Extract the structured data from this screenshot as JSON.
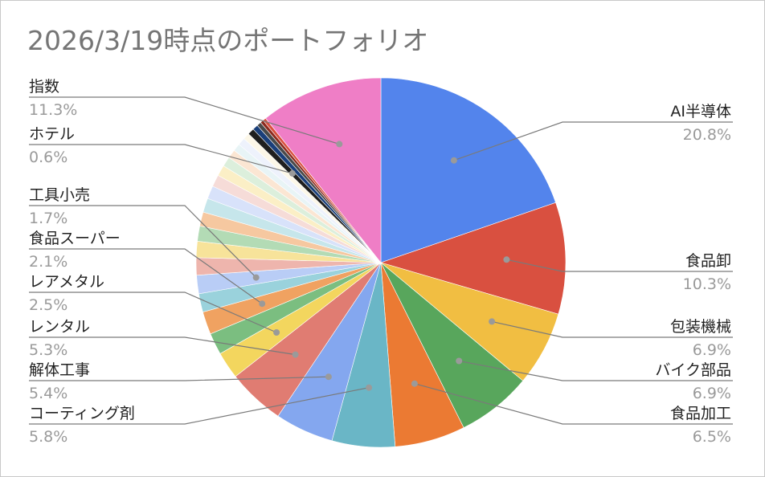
{
  "chart_data": {
    "type": "pie",
    "title": "2026/3/19時点のポートフォリオ",
    "start_angle_deg": 0,
    "direction": "clockwise",
    "slices": [
      {
        "name": "AI半導体",
        "value": 20.8,
        "pct_label": "20.8%",
        "color": "#5384ec",
        "labeled": true
      },
      {
        "name": "食品卸",
        "value": 10.3,
        "pct_label": "10.3%",
        "color": "#d95040",
        "labeled": true
      },
      {
        "name": "包装機械",
        "value": 6.9,
        "pct_label": "6.9%",
        "color": "#f1be42",
        "labeled": true
      },
      {
        "name": "バイク部品",
        "value": 6.9,
        "pct_label": "6.9%",
        "color": "#58a65c",
        "labeled": true
      },
      {
        "name": "食品加工",
        "value": 6.5,
        "pct_label": "6.5%",
        "color": "#eb7a33",
        "labeled": true
      },
      {
        "name": "コーティング剤",
        "value": 5.8,
        "pct_label": "5.8%",
        "color": "#6ab6c6",
        "labeled": true
      },
      {
        "name": "解体工事",
        "value": 5.4,
        "pct_label": "5.4%",
        "color": "#84a7ef",
        "labeled": true
      },
      {
        "name": "レンタル",
        "value": 5.3,
        "pct_label": "5.3%",
        "color": "#e07c72",
        "labeled": true
      },
      {
        "name": "レアメタル",
        "value": 2.5,
        "pct_label": "2.5%",
        "color": "#f3d65e",
        "labeled": true
      },
      {
        "name": "",
        "value": 2.0,
        "pct_label": "",
        "color": "#7bbe80",
        "labeled": false
      },
      {
        "name": "食品スーパー",
        "value": 2.1,
        "pct_label": "2.1%",
        "color": "#f0a261",
        "labeled": true
      },
      {
        "name": "",
        "value": 1.7,
        "pct_label": "",
        "color": "#9ad2dc",
        "labeled": false
      },
      {
        "name": "工具小売",
        "value": 1.7,
        "pct_label": "1.7%",
        "color": "#b9cdf6",
        "labeled": true
      },
      {
        "name": "",
        "value": 1.6,
        "pct_label": "",
        "color": "#eeb5ad",
        "labeled": false
      },
      {
        "name": "",
        "value": 1.5,
        "pct_label": "",
        "color": "#f7e39a",
        "labeled": false
      },
      {
        "name": "",
        "value": 1.4,
        "pct_label": "",
        "color": "#b3dbb5",
        "labeled": false
      },
      {
        "name": "",
        "value": 1.3,
        "pct_label": "",
        "color": "#f6c8a0",
        "labeled": false
      },
      {
        "name": "",
        "value": 1.3,
        "pct_label": "",
        "color": "#c6e6eb",
        "labeled": false
      },
      {
        "name": "",
        "value": 1.2,
        "pct_label": "",
        "color": "#d8e2fa",
        "labeled": false
      },
      {
        "name": "",
        "value": 1.1,
        "pct_label": "",
        "color": "#f6dcd8",
        "labeled": false
      },
      {
        "name": "",
        "value": 1.0,
        "pct_label": "",
        "color": "#fbefc6",
        "labeled": false
      },
      {
        "name": "",
        "value": 0.9,
        "pct_label": "",
        "color": "#dcefdc",
        "labeled": false
      },
      {
        "name": "",
        "value": 0.8,
        "pct_label": "",
        "color": "#fbe6d3",
        "labeled": false
      },
      {
        "name": "",
        "value": 0.7,
        "pct_label": "",
        "color": "#e8f4f6",
        "labeled": false
      },
      {
        "name": "",
        "value": 0.7,
        "pct_label": "",
        "color": "#eef2fc",
        "labeled": false
      },
      {
        "name": "",
        "value": 0.6,
        "pct_label": "",
        "color": "#fcf7e8",
        "labeled": false
      },
      {
        "name": "ホテル",
        "value": 0.6,
        "pct_label": "0.6%",
        "color": "#1f1f1f",
        "labeled": true
      },
      {
        "name": "",
        "value": 0.5,
        "pct_label": "",
        "color": "#1a3f7a",
        "labeled": false
      },
      {
        "name": "",
        "value": 0.4,
        "pct_label": "",
        "color": "#4a4a4a",
        "labeled": false
      },
      {
        "name": "",
        "value": 0.3,
        "pct_label": "",
        "color": "#8c2a1e",
        "labeled": false
      },
      {
        "name": "",
        "value": 0.3,
        "pct_label": "",
        "color": "#d95040",
        "labeled": false
      },
      {
        "name": "指数",
        "value": 11.3,
        "pct_label": "11.3%",
        "color": "#ef7ec6",
        "labeled": true
      }
    ],
    "legend": "none"
  }
}
